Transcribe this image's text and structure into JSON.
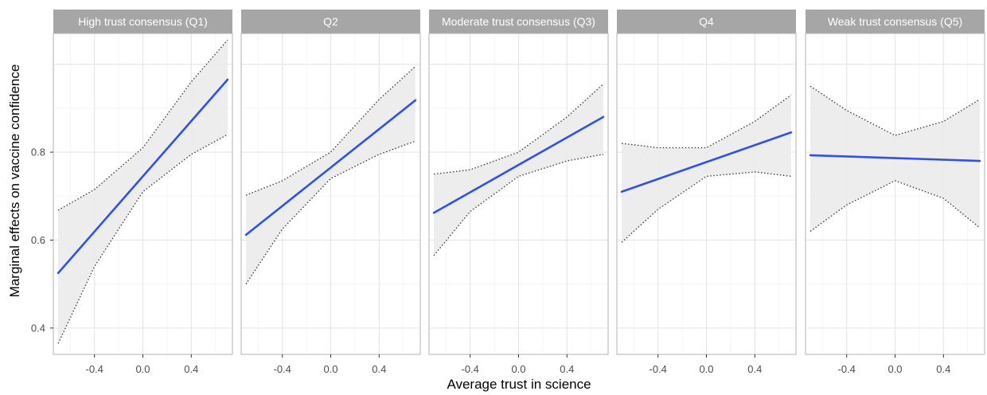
{
  "chart_data": {
    "type": "line",
    "xlabel": "Average trust in science",
    "ylabel": "Marginal effects on vaccine confidence",
    "xlim": [
      -0.74,
      0.74
    ],
    "ylim": [
      0.34,
      1.07
    ],
    "x_ticks": [
      -0.4,
      0.0,
      0.4
    ],
    "x_tick_labels": [
      "-0.4",
      "0.0",
      "0.4"
    ],
    "y_ticks": [
      0.4,
      0.6,
      0.8
    ],
    "y_tick_labels": [
      "0.4",
      "0.6",
      "0.8"
    ],
    "grid": true,
    "colors": {
      "line": "#3050e8",
      "ribbon": "#ebebeb",
      "strip": "#a6a6a6",
      "grid": "#e5e5e5",
      "panel_border": "#b3b3b3",
      "bound": "#333333"
    },
    "panels": [
      {
        "title": "High trust consensus (Q1)",
        "line": {
          "x": [
            -0.7,
            0.7
          ],
          "y": [
            0.525,
            0.965
          ]
        },
        "upper": {
          "x": [
            -0.7,
            -0.4,
            0.0,
            0.4,
            0.7
          ],
          "y": [
            0.668,
            0.715,
            0.81,
            0.96,
            1.055
          ]
        },
        "lower": {
          "x": [
            -0.7,
            -0.4,
            0.0,
            0.4,
            0.7
          ],
          "y": [
            0.365,
            0.54,
            0.71,
            0.795,
            0.84
          ]
        }
      },
      {
        "title": "Q2",
        "line": {
          "x": [
            -0.7,
            0.7
          ],
          "y": [
            0.612,
            0.918
          ]
        },
        "upper": {
          "x": [
            -0.7,
            -0.4,
            0.0,
            0.4,
            0.7
          ],
          "y": [
            0.702,
            0.735,
            0.8,
            0.92,
            0.995
          ]
        },
        "lower": {
          "x": [
            -0.7,
            -0.4,
            0.0,
            0.4,
            0.7
          ],
          "y": [
            0.5,
            0.625,
            0.74,
            0.795,
            0.825
          ]
        }
      },
      {
        "title": "Moderate trust consensus (Q3)",
        "line": {
          "x": [
            -0.7,
            0.7
          ],
          "y": [
            0.662,
            0.88
          ]
        },
        "upper": {
          "x": [
            -0.7,
            -0.4,
            0.0,
            0.4,
            0.7
          ],
          "y": [
            0.75,
            0.76,
            0.8,
            0.88,
            0.955
          ]
        },
        "lower": {
          "x": [
            -0.7,
            -0.4,
            0.0,
            0.4,
            0.7
          ],
          "y": [
            0.565,
            0.665,
            0.745,
            0.78,
            0.795
          ]
        }
      },
      {
        "title": "Q4",
        "line": {
          "x": [
            -0.7,
            0.7
          ],
          "y": [
            0.71,
            0.845
          ]
        },
        "upper": {
          "x": [
            -0.7,
            -0.4,
            0.0,
            0.4,
            0.7
          ],
          "y": [
            0.82,
            0.81,
            0.81,
            0.87,
            0.93
          ]
        },
        "lower": {
          "x": [
            -0.7,
            -0.4,
            0.0,
            0.4,
            0.7
          ],
          "y": [
            0.595,
            0.67,
            0.745,
            0.755,
            0.745
          ]
        }
      },
      {
        "title": "Weak trust consensus (Q5)",
        "line": {
          "x": [
            -0.7,
            0.7
          ],
          "y": [
            0.793,
            0.78
          ]
        },
        "upper": {
          "x": [
            -0.7,
            -0.4,
            0.0,
            0.4,
            0.7
          ],
          "y": [
            0.95,
            0.895,
            0.838,
            0.87,
            0.92
          ]
        },
        "lower": {
          "x": [
            -0.7,
            -0.4,
            0.0,
            0.4,
            0.7
          ],
          "y": [
            0.62,
            0.68,
            0.735,
            0.695,
            0.628
          ]
        }
      }
    ]
  }
}
